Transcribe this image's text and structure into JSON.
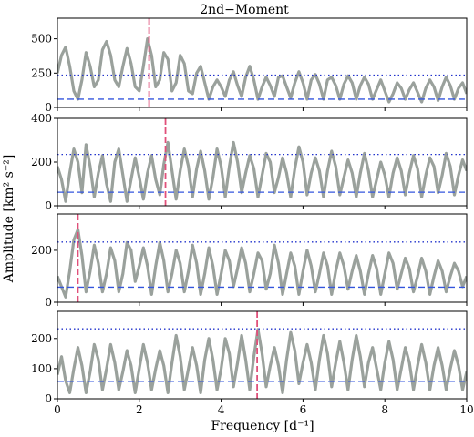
{
  "chart_data": [
    {
      "type": "line",
      "title": "2nd−Moment",
      "xlim": [
        0,
        10
      ],
      "ylim": [
        0,
        650
      ],
      "yticks": [
        0,
        250,
        500
      ],
      "xticks": [
        0,
        2,
        4,
        6,
        8,
        10
      ],
      "xticklabels_visible": false,
      "series": [
        {
          "values_x": [
            0.0,
            0.1,
            0.2,
            0.3,
            0.4,
            0.5,
            0.6,
            0.7,
            0.8,
            0.9,
            1.0,
            1.1,
            1.2,
            1.3,
            1.4,
            1.5,
            1.6,
            1.7,
            1.8,
            1.9,
            2.0,
            2.1,
            2.2,
            2.3,
            2.4,
            2.5,
            2.6,
            2.7,
            2.8,
            2.9,
            3.0,
            3.1,
            3.2,
            3.3,
            3.4,
            3.5,
            3.6,
            3.7,
            3.8,
            3.9,
            4.0,
            4.1,
            4.2,
            4.3,
            4.4,
            4.5,
            4.6,
            4.7,
            4.8,
            4.9,
            5.0,
            5.1,
            5.2,
            5.3,
            5.4,
            5.5,
            5.6,
            5.7,
            5.8,
            5.9,
            6.0,
            6.1,
            6.2,
            6.3,
            6.4,
            6.5,
            6.6,
            6.7,
            6.8,
            6.9,
            7.0,
            7.1,
            7.2,
            7.3,
            7.4,
            7.5,
            7.6,
            7.7,
            7.8,
            7.9,
            8.0,
            8.1,
            8.2,
            8.3,
            8.4,
            8.5,
            8.6,
            8.7,
            8.8,
            8.9,
            9.0,
            9.1,
            9.2,
            9.3,
            9.4,
            9.5,
            9.6,
            9.7,
            9.8,
            9.9,
            10.0
          ],
          "values_y": [
            250,
            380,
            440,
            300,
            120,
            60,
            200,
            400,
            300,
            150,
            200,
            420,
            480,
            380,
            200,
            150,
            300,
            430,
            320,
            150,
            120,
            300,
            500,
            380,
            150,
            200,
            400,
            350,
            120,
            180,
            380,
            320,
            120,
            100,
            250,
            300,
            180,
            60,
            150,
            200,
            150,
            80,
            200,
            260,
            160,
            80,
            220,
            300,
            200,
            60,
            150,
            220,
            160,
            80,
            220,
            230,
            150,
            70,
            180,
            260,
            180,
            60,
            200,
            240,
            170,
            60,
            200,
            220,
            160,
            60,
            170,
            230,
            180,
            60,
            160,
            220,
            170,
            60,
            130,
            200,
            120,
            40,
            100,
            180,
            140,
            60,
            130,
            180,
            110,
            40,
            140,
            200,
            150,
            50,
            150,
            220,
            160,
            60,
            140,
            180,
            100
          ]
        }
      ],
      "ref_lines": [
        {
          "style": "dotted",
          "value": 235,
          "color": "#2233cc"
        },
        {
          "style": "dashed",
          "value": 60,
          "color": "#3355dd"
        }
      ],
      "marker_frequency": 2.24,
      "marker_color": "#e0507a"
    },
    {
      "type": "line",
      "xlim": [
        0,
        10
      ],
      "ylim": [
        0,
        400
      ],
      "yticks": [
        0,
        200,
        400
      ],
      "xticks": [
        0,
        2,
        4,
        6,
        8,
        10
      ],
      "xticklabels_visible": false,
      "series": [
        {
          "values_x": [
            0.0,
            0.1,
            0.2,
            0.3,
            0.4,
            0.5,
            0.6,
            0.7,
            0.8,
            0.9,
            1.0,
            1.1,
            1.2,
            1.3,
            1.4,
            1.5,
            1.6,
            1.7,
            1.8,
            1.9,
            2.0,
            2.1,
            2.2,
            2.3,
            2.4,
            2.5,
            2.6,
            2.7,
            2.8,
            2.9,
            3.0,
            3.1,
            3.2,
            3.3,
            3.4,
            3.5,
            3.6,
            3.7,
            3.8,
            3.9,
            4.0,
            4.1,
            4.2,
            4.3,
            4.4,
            4.5,
            4.6,
            4.7,
            4.8,
            4.9,
            5.0,
            5.1,
            5.2,
            5.3,
            5.4,
            5.5,
            5.6,
            5.7,
            5.8,
            5.9,
            6.0,
            6.1,
            6.2,
            6.3,
            6.4,
            6.5,
            6.6,
            6.7,
            6.8,
            6.9,
            7.0,
            7.1,
            7.2,
            7.3,
            7.4,
            7.5,
            7.6,
            7.7,
            7.8,
            7.9,
            8.0,
            8.1,
            8.2,
            8.3,
            8.4,
            8.5,
            8.6,
            8.7,
            8.8,
            8.9,
            9.0,
            9.1,
            9.2,
            9.3,
            9.4,
            9.5,
            9.6,
            9.7,
            9.8,
            9.9,
            10.0
          ],
          "values_y": [
            180,
            120,
            20,
            150,
            260,
            200,
            60,
            280,
            180,
            40,
            150,
            230,
            100,
            20,
            200,
            260,
            140,
            20,
            120,
            220,
            130,
            30,
            150,
            230,
            120,
            50,
            190,
            290,
            160,
            30,
            160,
            260,
            180,
            40,
            170,
            250,
            160,
            30,
            130,
            260,
            180,
            40,
            180,
            290,
            200,
            60,
            150,
            230,
            170,
            40,
            140,
            240,
            200,
            60,
            130,
            220,
            150,
            40,
            170,
            270,
            200,
            50,
            150,
            220,
            160,
            40,
            160,
            250,
            180,
            50,
            130,
            210,
            150,
            40,
            150,
            240,
            160,
            40,
            120,
            200,
            140,
            40,
            150,
            220,
            160,
            50,
            150,
            230,
            170,
            40,
            140,
            220,
            180,
            60,
            140,
            240,
            180,
            50,
            140,
            210,
            160
          ]
        }
      ],
      "ref_lines": [
        {
          "style": "dotted",
          "value": 235,
          "color": "#2233cc"
        },
        {
          "style": "dashed",
          "value": 62,
          "color": "#3355dd"
        }
      ],
      "marker_frequency": 2.64,
      "marker_color": "#e0507a"
    },
    {
      "type": "line",
      "xlim": [
        0,
        10
      ],
      "ylim": [
        0,
        340
      ],
      "yticks": [
        0,
        200
      ],
      "xticks": [
        0,
        2,
        4,
        6,
        8,
        10
      ],
      "xticklabels_visible": false,
      "series": [
        {
          "values_x": [
            0.0,
            0.1,
            0.2,
            0.3,
            0.4,
            0.5,
            0.6,
            0.7,
            0.8,
            0.9,
            1.0,
            1.1,
            1.2,
            1.3,
            1.4,
            1.5,
            1.6,
            1.7,
            1.8,
            1.9,
            2.0,
            2.1,
            2.2,
            2.3,
            2.4,
            2.5,
            2.6,
            2.7,
            2.8,
            2.9,
            3.0,
            3.1,
            3.2,
            3.3,
            3.4,
            3.5,
            3.6,
            3.7,
            3.8,
            3.9,
            4.0,
            4.1,
            4.2,
            4.3,
            4.4,
            4.5,
            4.6,
            4.7,
            4.8,
            4.9,
            5.0,
            5.1,
            5.2,
            5.3,
            5.4,
            5.5,
            5.6,
            5.7,
            5.8,
            5.9,
            6.0,
            6.1,
            6.2,
            6.3,
            6.4,
            6.5,
            6.6,
            6.7,
            6.8,
            6.9,
            7.0,
            7.1,
            7.2,
            7.3,
            7.4,
            7.5,
            7.6,
            7.7,
            7.8,
            7.9,
            8.0,
            8.1,
            8.2,
            8.3,
            8.4,
            8.5,
            8.6,
            8.7,
            8.8,
            8.9,
            9.0,
            9.1,
            9.2,
            9.3,
            9.4,
            9.5,
            9.6,
            9.7,
            9.8,
            9.9,
            10.0
          ],
          "values_y": [
            100,
            60,
            20,
            120,
            240,
            280,
            180,
            40,
            120,
            220,
            150,
            40,
            110,
            210,
            160,
            40,
            110,
            230,
            200,
            80,
            140,
            210,
            140,
            30,
            140,
            230,
            160,
            40,
            110,
            200,
            150,
            40,
            120,
            220,
            150,
            30,
            110,
            210,
            140,
            30,
            110,
            200,
            160,
            60,
            130,
            210,
            150,
            40,
            110,
            190,
            160,
            50,
            110,
            220,
            150,
            30,
            110,
            190,
            140,
            30,
            120,
            200,
            140,
            40,
            110,
            190,
            140,
            30,
            120,
            190,
            140,
            50,
            120,
            180,
            120,
            30,
            110,
            180,
            130,
            30,
            110,
            190,
            150,
            50,
            110,
            170,
            130,
            40,
            100,
            170,
            120,
            30,
            100,
            160,
            120,
            40,
            100,
            150,
            120,
            60,
            100
          ]
        }
      ],
      "ref_lines": [
        {
          "style": "dotted",
          "value": 232,
          "color": "#2233cc"
        },
        {
          "style": "dashed",
          "value": 58,
          "color": "#3355dd"
        }
      ],
      "marker_frequency": 0.5,
      "marker_color": "#e0507a"
    },
    {
      "type": "line",
      "xlim": [
        0,
        10
      ],
      "ylim": [
        0,
        290
      ],
      "yticks": [
        0,
        100,
        200
      ],
      "xticks": [
        0,
        2,
        4,
        6,
        8,
        10
      ],
      "xticklabels": [
        "0",
        "2",
        "4",
        "6",
        "8",
        "10"
      ],
      "xlabel": "Frequency [d⁻¹]",
      "series": [
        {
          "values_x": [
            0.0,
            0.1,
            0.2,
            0.3,
            0.4,
            0.5,
            0.6,
            0.7,
            0.8,
            0.9,
            1.0,
            1.1,
            1.2,
            1.3,
            1.4,
            1.5,
            1.6,
            1.7,
            1.8,
            1.9,
            2.0,
            2.1,
            2.2,
            2.3,
            2.4,
            2.5,
            2.6,
            2.7,
            2.8,
            2.9,
            3.0,
            3.1,
            3.2,
            3.3,
            3.4,
            3.5,
            3.6,
            3.7,
            3.8,
            3.9,
            4.0,
            4.1,
            4.2,
            4.3,
            4.4,
            4.5,
            4.6,
            4.7,
            4.8,
            4.9,
            5.0,
            5.1,
            5.2,
            5.3,
            5.4,
            5.5,
            5.6,
            5.7,
            5.8,
            5.9,
            6.0,
            6.1,
            6.2,
            6.3,
            6.4,
            6.5,
            6.6,
            6.7,
            6.8,
            6.9,
            7.0,
            7.1,
            7.2,
            7.3,
            7.4,
            7.5,
            7.6,
            7.7,
            7.8,
            7.9,
            8.0,
            8.1,
            8.2,
            8.3,
            8.4,
            8.5,
            8.6,
            8.7,
            8.8,
            8.9,
            9.0,
            9.1,
            9.2,
            9.3,
            9.4,
            9.5,
            9.6,
            9.7,
            9.8,
            9.9,
            10.0
          ],
          "values_y": [
            80,
            140,
            60,
            20,
            100,
            170,
            110,
            20,
            90,
            180,
            130,
            30,
            100,
            180,
            120,
            30,
            90,
            160,
            110,
            20,
            100,
            180,
            120,
            30,
            100,
            160,
            110,
            20,
            120,
            210,
            140,
            30,
            100,
            170,
            110,
            20,
            130,
            200,
            130,
            30,
            100,
            200,
            150,
            40,
            120,
            210,
            130,
            30,
            140,
            230,
            150,
            40,
            110,
            170,
            110,
            20,
            130,
            220,
            160,
            50,
            120,
            180,
            120,
            30,
            130,
            210,
            150,
            40,
            120,
            190,
            120,
            30,
            130,
            210,
            140,
            40,
            120,
            170,
            100,
            30,
            120,
            190,
            130,
            30,
            100,
            170,
            120,
            30,
            110,
            180,
            120,
            30,
            110,
            170,
            110,
            30,
            100,
            160,
            110,
            30,
            90
          ]
        }
      ],
      "ref_lines": [
        {
          "style": "dotted",
          "value": 232,
          "color": "#2233cc"
        },
        {
          "style": "dashed",
          "value": 58,
          "color": "#3355dd"
        }
      ],
      "marker_frequency": 4.88,
      "marker_color": "#e0507a"
    }
  ],
  "figure": {
    "title": "2nd−Moment",
    "ylabel": "Amplitude [km² s⁻²]",
    "xlabel": "Frequency [d⁻¹]",
    "series_color": "#9aa19c"
  }
}
